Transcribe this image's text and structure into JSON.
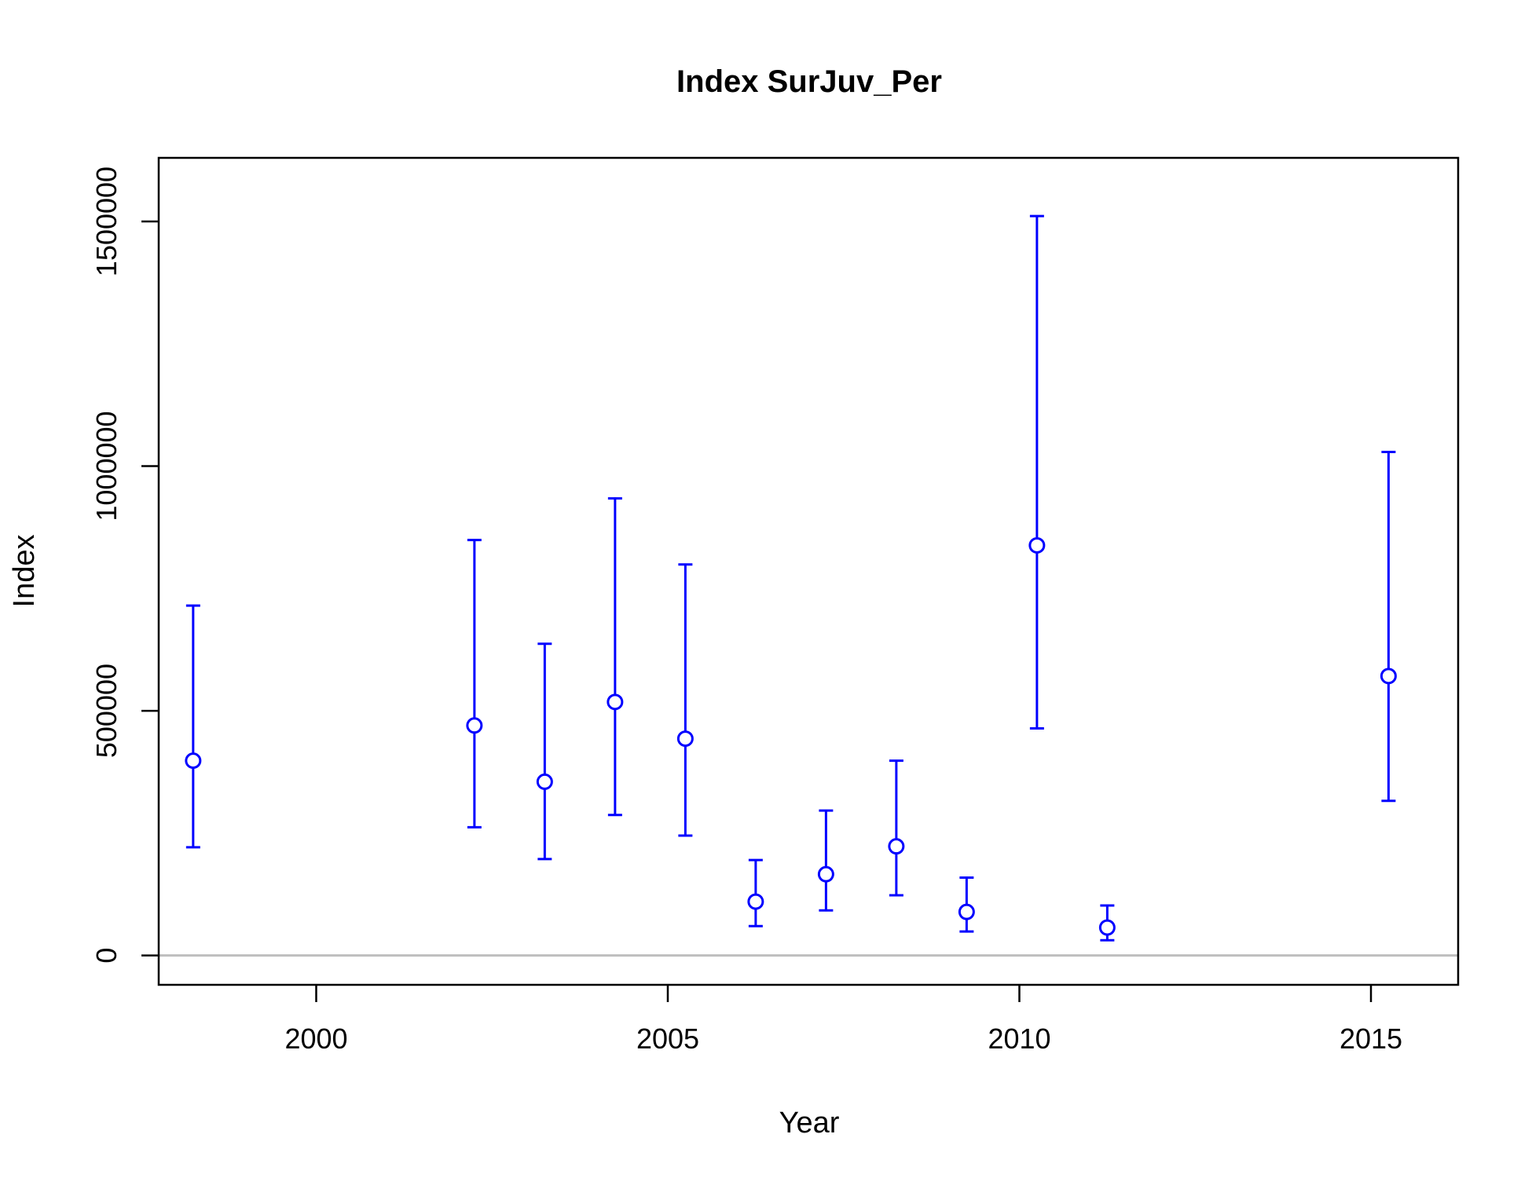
{
  "chart_data": {
    "type": "scatter",
    "title": "Index SurJuv_Per",
    "xlabel": "Year",
    "ylabel": "Index",
    "xlim": [
      1997.76,
      2016.24
    ],
    "ylim": [
      -60000,
      1630000
    ],
    "x_ticks": [
      2000,
      2005,
      2010,
      2015
    ],
    "y_ticks": [
      0,
      500000,
      1000000,
      1500000
    ],
    "reference_line_y": 0,
    "grid": false,
    "legend": "none",
    "colors": {
      "series": "#0000ff",
      "reference_line": "#bebebe",
      "axes": "#000000"
    },
    "series": [
      {
        "x": [
          1998.25,
          2002.25,
          2003.25,
          2004.25,
          2005.25,
          2006.25,
          2007.25,
          2008.25,
          2009.25,
          2010.25,
          2011.25,
          2015.25
        ],
        "y": [
          398000,
          470000,
          355000,
          518000,
          443000,
          110000,
          166000,
          223000,
          89000,
          838000,
          57000,
          571000
        ],
        "lower": [
          221000,
          262000,
          197000,
          287000,
          245000,
          60000,
          92000,
          123000,
          49000,
          464000,
          31000,
          316000
        ],
        "upper": [
          715000,
          849000,
          637000,
          934000,
          799000,
          195000,
          296000,
          398000,
          159000,
          1511000,
          102000,
          1029000
        ]
      }
    ]
  }
}
